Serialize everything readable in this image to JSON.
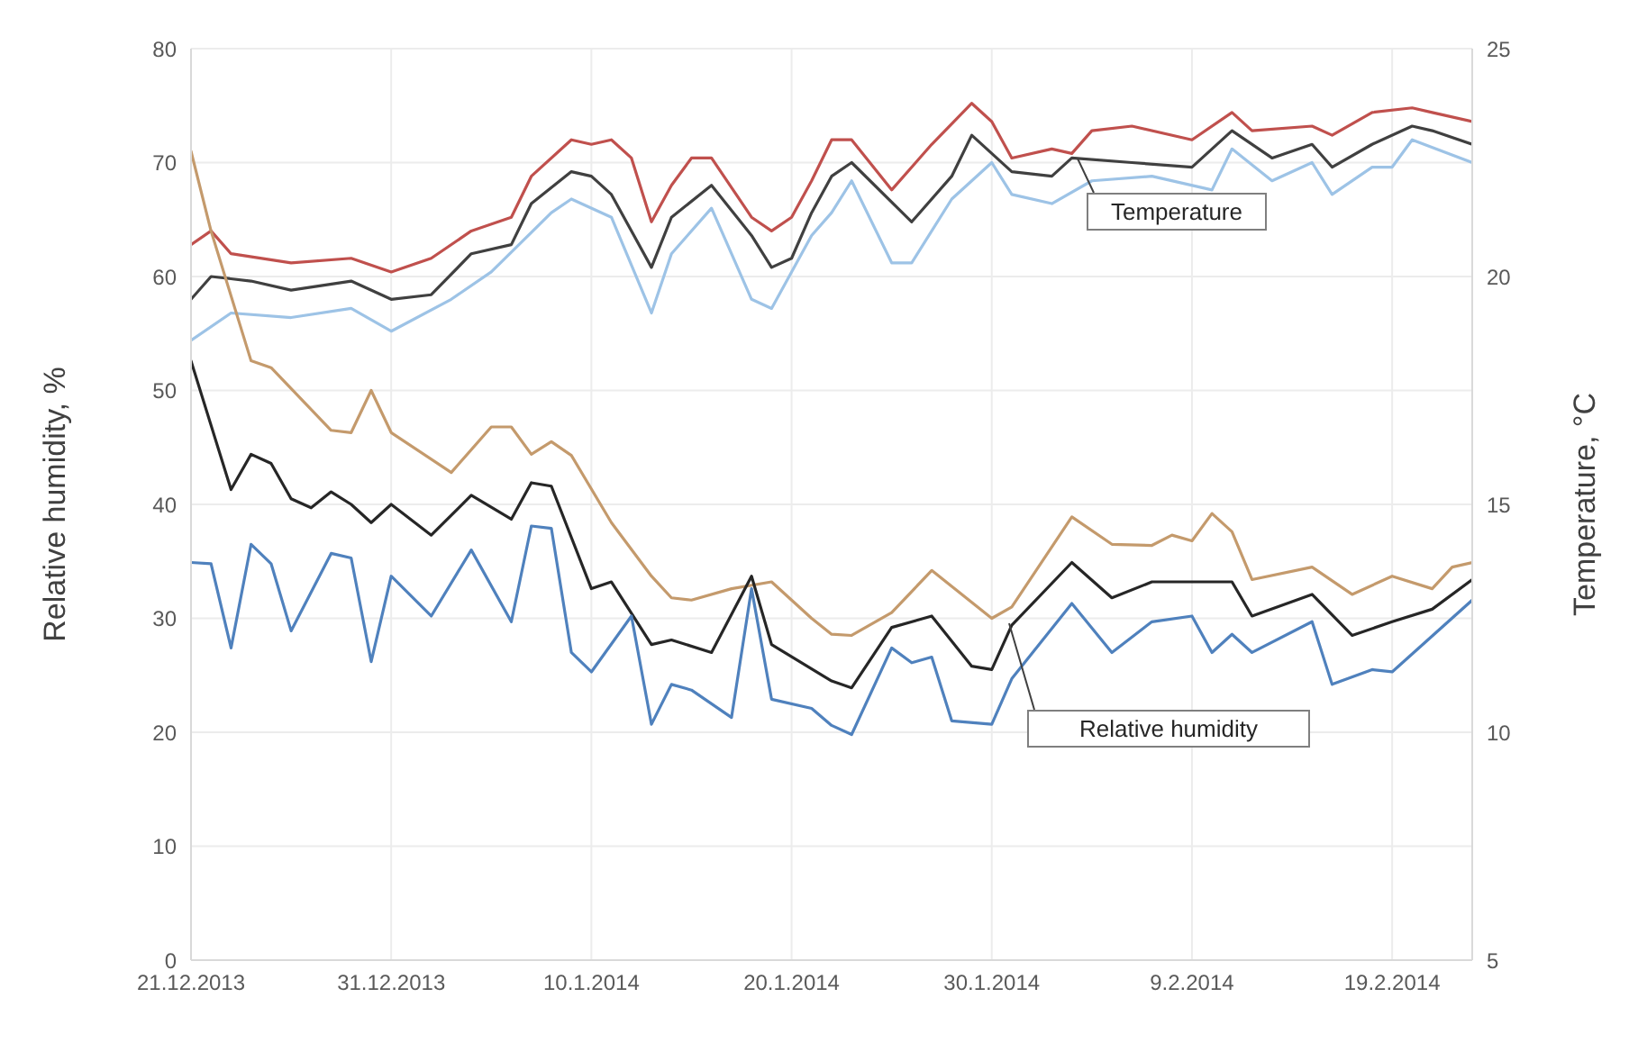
{
  "chart_data": {
    "type": "line",
    "xlabel": null,
    "ylabel": "Relative humidity, %",
    "y2label": "Temperature, °C",
    "xlim": [
      "2013-12-21",
      "2014-02-23"
    ],
    "xticks": [
      {
        "value": "2013-12-21",
        "label": "21.12.2013"
      },
      {
        "value": "2013-12-31",
        "label": "31.12.2013"
      },
      {
        "value": "2014-01-10",
        "label": "10.1.2014"
      },
      {
        "value": "2014-01-20",
        "label": "20.1.2014"
      },
      {
        "value": "2014-01-30",
        "label": "30.1.2014"
      },
      {
        "value": "2014-02-09",
        "label": "9.2.2014"
      },
      {
        "value": "2014-02-19",
        "label": "19.2.2014"
      }
    ],
    "ylim": [
      0,
      80
    ],
    "yticks": [
      0,
      10,
      20,
      30,
      40,
      50,
      60,
      70,
      80
    ],
    "y2lim": [
      5,
      25
    ],
    "y2ticks": [
      5,
      10,
      15,
      20,
      25
    ],
    "grid": true,
    "annotations": [
      "Temperature",
      "Relative humidity"
    ],
    "series": [
      {
        "axis": "y2",
        "color": "#c0504d",
        "x": [
          "2013-12-21",
          "2013-12-22",
          "2013-12-23",
          "2013-12-26",
          "2013-12-29",
          "2013-12-31",
          "2014-01-02",
          "2014-01-04",
          "2014-01-06",
          "2014-01-07",
          "2014-01-09",
          "2014-01-10",
          "2014-01-11",
          "2014-01-12",
          "2014-01-13",
          "2014-01-14",
          "2014-01-15",
          "2014-01-16",
          "2014-01-18",
          "2014-01-19",
          "2014-01-20",
          "2014-01-21",
          "2014-01-22",
          "2014-01-23",
          "2014-01-25",
          "2014-01-27",
          "2014-01-29",
          "2014-01-30",
          "2014-01-31",
          "2014-02-02",
          "2014-02-03",
          "2014-02-04",
          "2014-02-06",
          "2014-02-09",
          "2014-02-11",
          "2014-02-12",
          "2014-02-15",
          "2014-02-16",
          "2014-02-18",
          "2014-02-20",
          "2014-02-21",
          "2014-02-23"
        ],
        "values": [
          20.7,
          21.0,
          20.5,
          20.3,
          20.4,
          20.1,
          20.4,
          21.0,
          21.3,
          22.2,
          23.0,
          22.9,
          23.0,
          22.6,
          21.2,
          22.0,
          22.6,
          22.6,
          21.3,
          21.0,
          21.3,
          22.1,
          23.0,
          23.0,
          21.9,
          22.9,
          23.8,
          23.4,
          22.6,
          22.8,
          22.7,
          23.2,
          23.3,
          23.0,
          23.6,
          23.2,
          23.3,
          23.1,
          23.6,
          23.7,
          23.6,
          23.4
        ]
      },
      {
        "axis": "y2",
        "color": "#404040",
        "x": [
          "2013-12-21",
          "2013-12-22",
          "2013-12-24",
          "2013-12-26",
          "2013-12-29",
          "2013-12-31",
          "2014-01-02",
          "2014-01-04",
          "2014-01-06",
          "2014-01-07",
          "2014-01-09",
          "2014-01-10",
          "2014-01-11",
          "2014-01-13",
          "2014-01-14",
          "2014-01-16",
          "2014-01-18",
          "2014-01-19",
          "2014-01-20",
          "2014-01-21",
          "2014-01-22",
          "2014-01-23",
          "2014-01-26",
          "2014-01-28",
          "2014-01-29",
          "2014-01-31",
          "2014-02-02",
          "2014-02-03",
          "2014-02-06",
          "2014-02-09",
          "2014-02-11",
          "2014-02-13",
          "2014-02-15",
          "2014-02-16",
          "2014-02-18",
          "2014-02-20",
          "2014-02-21",
          "2014-02-23"
        ],
        "values": [
          19.5,
          20.0,
          19.9,
          19.7,
          19.9,
          19.5,
          19.6,
          20.5,
          20.7,
          21.6,
          22.3,
          22.2,
          21.8,
          20.2,
          21.3,
          22.0,
          20.9,
          20.2,
          20.4,
          21.4,
          22.2,
          22.5,
          21.2,
          22.2,
          23.1,
          22.3,
          22.2,
          22.6,
          22.5,
          22.4,
          23.2,
          22.6,
          22.9,
          22.4,
          22.9,
          23.3,
          23.2,
          22.9
        ]
      },
      {
        "axis": "y2",
        "color": "#9dc3e6",
        "x": [
          "2013-12-21",
          "2013-12-23",
          "2013-12-26",
          "2013-12-29",
          "2013-12-31",
          "2014-01-03",
          "2014-01-05",
          "2014-01-08",
          "2014-01-09",
          "2014-01-11",
          "2014-01-13",
          "2014-01-14",
          "2014-01-16",
          "2014-01-18",
          "2014-01-19",
          "2014-01-21",
          "2014-01-22",
          "2014-01-23",
          "2014-01-25",
          "2014-01-26",
          "2014-01-28",
          "2014-01-30",
          "2014-01-31",
          "2014-02-02",
          "2014-02-04",
          "2014-02-07",
          "2014-02-10",
          "2014-02-11",
          "2014-02-13",
          "2014-02-15",
          "2014-02-16",
          "2014-02-18",
          "2014-02-19",
          "2014-02-20",
          "2014-02-23"
        ],
        "values": [
          18.6,
          19.2,
          19.1,
          19.3,
          18.8,
          19.5,
          20.1,
          21.4,
          21.7,
          21.3,
          19.2,
          20.5,
          21.5,
          19.5,
          19.3,
          20.9,
          21.4,
          22.1,
          20.3,
          20.3,
          21.7,
          22.5,
          21.8,
          21.6,
          22.1,
          22.2,
          21.9,
          22.8,
          22.1,
          22.5,
          21.8,
          22.4,
          22.4,
          23.0,
          22.5
        ]
      },
      {
        "color": "#c49a6c",
        "x": [
          "2013-12-21",
          "2013-12-22",
          "2013-12-24",
          "2013-12-25",
          "2013-12-28",
          "2013-12-29",
          "2013-12-30",
          "2013-12-31",
          "2014-01-03",
          "2014-01-05",
          "2014-01-06",
          "2014-01-07",
          "2014-01-08",
          "2014-01-09",
          "2014-01-11",
          "2014-01-13",
          "2014-01-14",
          "2014-01-15",
          "2014-01-17",
          "2014-01-19",
          "2014-01-21",
          "2014-01-22",
          "2014-01-23",
          "2014-01-25",
          "2014-01-27",
          "2014-01-30",
          "2014-01-31",
          "2014-02-03",
          "2014-02-05",
          "2014-02-07",
          "2014-02-08",
          "2014-02-09",
          "2014-02-10",
          "2014-02-11",
          "2014-02-12",
          "2014-02-15",
          "2014-02-17",
          "2014-02-19",
          "2014-02-21",
          "2014-02-22",
          "2014-02-23"
        ],
        "values": [
          71,
          64,
          52.6,
          52,
          46.5,
          46.3,
          50,
          46.3,
          42.8,
          46.8,
          46.8,
          44.4,
          45.5,
          44.3,
          38.4,
          33.7,
          31.8,
          31.6,
          32.6,
          33.2,
          30,
          28.6,
          28.5,
          30.5,
          34.2,
          30,
          31,
          38.9,
          36.5,
          36.4,
          37.3,
          36.8,
          39.2,
          37.6,
          33.4,
          34.5,
          32.1,
          33.7,
          32.6,
          34.5,
          34.9
        ]
      },
      {
        "color": "#262626",
        "x": [
          "2013-12-21",
          "2013-12-23",
          "2013-12-24",
          "2013-12-25",
          "2013-12-26",
          "2013-12-27",
          "2013-12-28",
          "2013-12-29",
          "2013-12-30",
          "2013-12-31",
          "2014-01-02",
          "2014-01-04",
          "2014-01-06",
          "2014-01-07",
          "2014-01-08",
          "2014-01-10",
          "2014-01-11",
          "2014-01-13",
          "2014-01-14",
          "2014-01-16",
          "2014-01-18",
          "2014-01-19",
          "2014-01-22",
          "2014-01-23",
          "2014-01-25",
          "2014-01-27",
          "2014-01-29",
          "2014-01-30",
          "2014-01-31",
          "2014-02-03",
          "2014-02-05",
          "2014-02-07",
          "2014-02-11",
          "2014-02-12",
          "2014-02-15",
          "2014-02-17",
          "2014-02-19",
          "2014-02-21",
          "2014-02-23"
        ],
        "values": [
          52.6,
          41.3,
          44.4,
          43.6,
          40.5,
          39.7,
          41.1,
          40.0,
          38.4,
          40.0,
          37.3,
          40.8,
          38.7,
          41.9,
          41.6,
          32.6,
          33.2,
          27.7,
          28.1,
          27.0,
          33.7,
          27.7,
          24.5,
          23.9,
          29.2,
          30.2,
          25.8,
          25.5,
          29.4,
          34.9,
          31.8,
          33.2,
          33.2,
          30.2,
          32.1,
          28.5,
          29.7,
          30.8,
          33.4
        ]
      },
      {
        "color": "#4f81bd",
        "x": [
          "2013-12-21",
          "2013-12-22",
          "2013-12-23",
          "2013-12-24",
          "2013-12-25",
          "2013-12-26",
          "2013-12-28",
          "2013-12-29",
          "2013-12-30",
          "2013-12-31",
          "2014-01-02",
          "2014-01-04",
          "2014-01-06",
          "2014-01-07",
          "2014-01-08",
          "2014-01-09",
          "2014-01-10",
          "2014-01-12",
          "2014-01-13",
          "2014-01-14",
          "2014-01-15",
          "2014-01-17",
          "2014-01-18",
          "2014-01-19",
          "2014-01-21",
          "2014-01-22",
          "2014-01-23",
          "2014-01-25",
          "2014-01-26",
          "2014-01-27",
          "2014-01-28",
          "2014-01-30",
          "2014-01-31",
          "2014-02-03",
          "2014-02-05",
          "2014-02-07",
          "2014-02-09",
          "2014-02-10",
          "2014-02-11",
          "2014-02-12",
          "2014-02-15",
          "2014-02-16",
          "2014-02-18",
          "2014-02-19",
          "2014-02-23"
        ],
        "values": [
          34.9,
          34.8,
          27.4,
          36.5,
          34.8,
          28.9,
          35.7,
          35.3,
          26.2,
          33.7,
          30.2,
          36.0,
          29.7,
          38.1,
          37.9,
          27.0,
          25.3,
          30.2,
          20.7,
          24.2,
          23.7,
          21.3,
          32.6,
          22.9,
          22.1,
          20.6,
          19.8,
          27.4,
          26.1,
          26.6,
          21.0,
          20.7,
          24.7,
          31.3,
          27.0,
          29.7,
          30.2,
          27.0,
          28.6,
          27.0,
          29.7,
          24.2,
          25.5,
          25.3,
          31.6
        ]
      }
    ]
  }
}
